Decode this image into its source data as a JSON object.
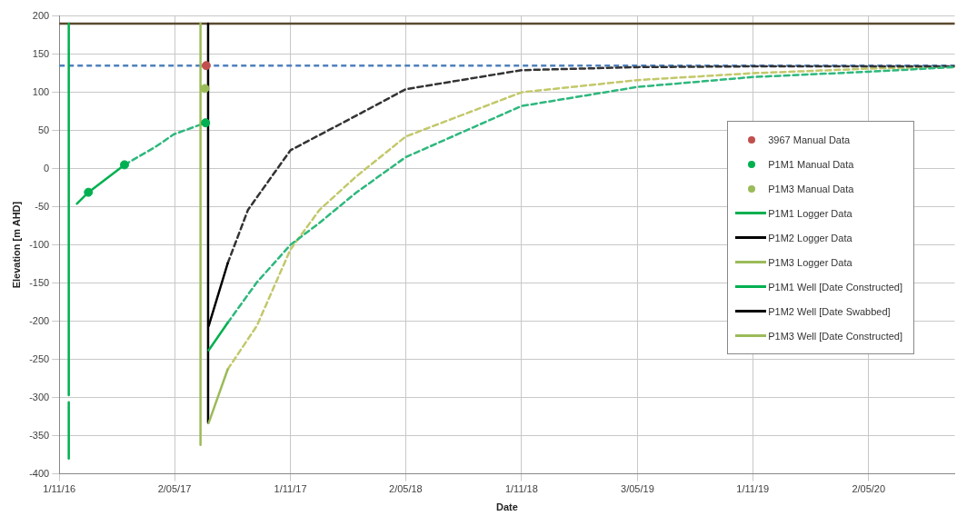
{
  "chart_data": {
    "type": "line",
    "xlabel": "Date",
    "ylabel": "Elevation [m AHD]",
    "xlim": [
      "2016-11-01",
      "2020-09-15"
    ],
    "xticks": [
      {
        "value": "2016-11-01",
        "label": "1/11/16"
      },
      {
        "value": "2017-05-02",
        "label": "2/05/17"
      },
      {
        "value": "2017-11-01",
        "label": "1/11/17"
      },
      {
        "value": "2018-05-02",
        "label": "2/05/18"
      },
      {
        "value": "2018-11-01",
        "label": "1/11/18"
      },
      {
        "value": "2019-05-03",
        "label": "3/05/19"
      },
      {
        "value": "2019-11-01",
        "label": "1/11/19"
      },
      {
        "value": "2020-05-02",
        "label": "2/05/20"
      }
    ],
    "ylim": [
      -400,
      200
    ],
    "yticks": [
      -400,
      -350,
      -300,
      -250,
      -200,
      -150,
      -100,
      -50,
      0,
      50,
      100,
      150,
      200
    ],
    "grid": true,
    "legend": "right",
    "ref_lines": [
      {
        "axis": "y",
        "value": 190,
        "color": "#5b4a2f",
        "line_style": "solid"
      },
      {
        "axis": "y",
        "value": 135,
        "color": "#4f81bd",
        "line_style": "dashed"
      }
    ],
    "series": [
      {
        "name": "3967 Manual Data",
        "type": "scatter",
        "color": "#c0504d",
        "x": [
          "2017-06-21"
        ],
        "values": [
          135
        ]
      },
      {
        "name": "P1M1 Manual Data",
        "type": "scatter",
        "color": "#00b050",
        "x": [
          "2016-12-17",
          "2017-02-12",
          "2017-06-20"
        ],
        "values": [
          -31,
          5,
          60
        ]
      },
      {
        "name": "P1M3 Manual Data",
        "type": "scatter",
        "color": "#9bbb59",
        "x": [
          "2017-06-19"
        ],
        "values": [
          105
        ]
      },
      {
        "name": "P1M1 Logger Data",
        "type": "line",
        "color": "#00b050",
        "line_style": "solid",
        "x": [
          "2016-11-29",
          "2016-12-17",
          "2017-02-12",
          null,
          "2017-06-25",
          "2017-07-25"
        ],
        "values": [
          -46,
          -31,
          5,
          null,
          -238,
          -202
        ]
      },
      {
        "name": "P1M2 Logger Data",
        "type": "line",
        "color": "#000000",
        "line_style": "solid",
        "x": [
          "2017-06-25",
          "2017-07-25"
        ],
        "values": [
          -206,
          -124
        ]
      },
      {
        "name": "P1M3 Logger Data",
        "type": "line",
        "color": "#9bbb59",
        "line_style": "solid",
        "x": [
          "2017-06-25",
          "2017-07-25"
        ],
        "values": [
          -333,
          -263
        ]
      },
      {
        "name": "P1M1 Well [Date Constructed]",
        "type": "line",
        "color": "#00b050",
        "line_style": "solid",
        "x": [
          "2016-11-16",
          "2016-11-16",
          null,
          "2016-11-16",
          "2016-11-16"
        ],
        "values": [
          190,
          -297,
          null,
          -306,
          -380
        ]
      },
      {
        "name": "P1M2 Well [Date Swabbed]",
        "type": "line",
        "color": "#000000",
        "line_style": "solid",
        "x": [
          "2017-06-24",
          "2017-06-24"
        ],
        "values": [
          190,
          -333
        ]
      },
      {
        "name": "P1M3 Well [Date Constructed]",
        "type": "line",
        "color": "#9bbb59",
        "line_style": "solid",
        "x": [
          "2017-06-12",
          "2017-06-12"
        ],
        "values": [
          190,
          -362
        ]
      },
      {
        "type": "line",
        "color": "#2db87d",
        "line_style": "dashed",
        "x": [
          "2017-02-12",
          "2017-04-01",
          "2017-05-01",
          "2017-06-20",
          null,
          "2017-07-25",
          "2017-09-09",
          "2017-11-01",
          "2017-12-17",
          "2018-02-12",
          "2018-05-02",
          "2018-11-01",
          "2019-05-03",
          "2019-11-01",
          "2020-05-02",
          "2020-09-15"
        ],
        "values": [
          5,
          28,
          45,
          60,
          null,
          -202,
          -149,
          -100,
          -71,
          -32,
          15,
          82,
          107,
          120,
          127,
          133
        ]
      },
      {
        "type": "line",
        "color": "#333333",
        "line_style": "dashed",
        "x": [
          "2017-07-25",
          "2017-08-26",
          "2017-11-01",
          "2018-02-12",
          "2018-05-02",
          "2018-11-01",
          "2019-05-03",
          "2019-11-01",
          "2020-05-02",
          "2020-09-15"
        ],
        "values": [
          -124,
          -54,
          24,
          69,
          104,
          129,
          133,
          134,
          134,
          134
        ]
      },
      {
        "type": "line",
        "color": "#c3c86b",
        "line_style": "dashed",
        "x": [
          "2017-07-25",
          "2017-09-09",
          "2017-11-01",
          "2017-12-17",
          "2018-02-12",
          "2018-05-02",
          "2018-11-01",
          "2019-05-03",
          "2019-11-01",
          "2020-05-02",
          "2020-09-15"
        ],
        "values": [
          -263,
          -206,
          -106,
          -54,
          -11,
          42,
          100,
          116,
          125,
          131,
          134
        ]
      }
    ]
  }
}
